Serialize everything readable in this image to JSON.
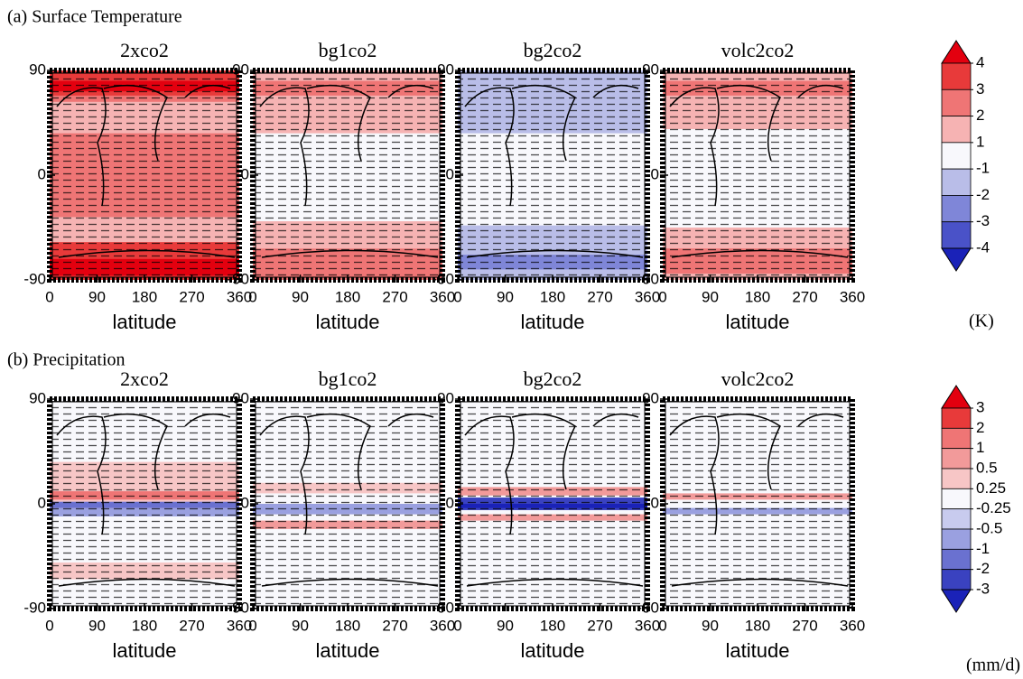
{
  "figure": {
    "xlabel": "latitude",
    "xlim": [
      0,
      360
    ],
    "xticks": [
      0,
      90,
      180,
      270,
      360
    ],
    "ylim": [
      -90,
      90
    ],
    "yticks": [
      90,
      0,
      -90
    ],
    "rows": [
      {
        "label": "(a) Surface Temperature",
        "unit": "(K)",
        "panels": [
          "2xco2",
          "bg1co2",
          "bg2co2",
          "volc2co2"
        ],
        "levels": [
          4,
          3,
          2,
          1,
          -1,
          -2,
          -3,
          -4
        ],
        "colors": [
          "#e3000f",
          "#e83a3a",
          "#ef7575",
          "#f6b3b3",
          "#f8f8fc",
          "#b9bde8",
          "#7f86d8",
          "#4a52c8",
          "#1a22b8"
        ]
      },
      {
        "label": "(b) Precipitation",
        "unit": "(mm/d)",
        "panels": [
          "2xco2",
          "bg1co2",
          "bg2co2",
          "volc2co2"
        ],
        "levels": [
          3,
          2,
          1,
          0.5,
          0.25,
          -0.25,
          -0.5,
          -1,
          -2,
          -3
        ],
        "colors": [
          "#e3000f",
          "#e83a3a",
          "#ef7575",
          "#f29a9a",
          "#f7c6c6",
          "#f8f8fc",
          "#c8cbee",
          "#9aa0e0",
          "#6a71d0",
          "#3a42c0",
          "#1a22b8"
        ]
      }
    ]
  }
}
